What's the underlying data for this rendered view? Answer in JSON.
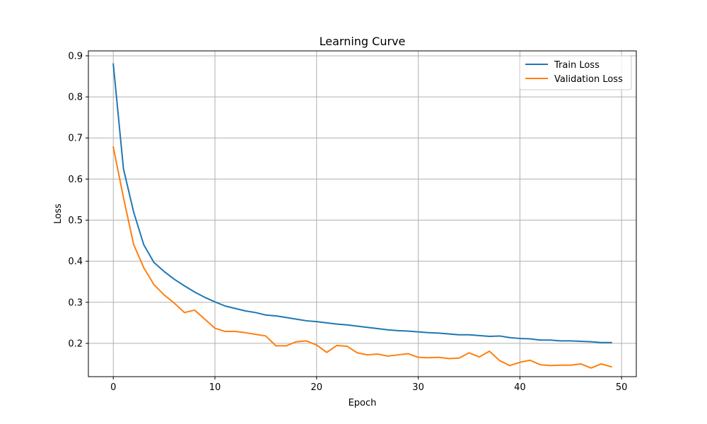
{
  "chart_data": {
    "type": "line",
    "title": "Learning Curve",
    "xlabel": "Epoch",
    "ylabel": "Loss",
    "xlim": [
      -2.45,
      51.45
    ],
    "ylim": [
      0.119,
      0.912
    ],
    "xticks": [
      0,
      10,
      20,
      30,
      40,
      50
    ],
    "yticks": [
      0.2,
      0.3,
      0.4,
      0.5,
      0.6,
      0.7,
      0.8,
      0.9
    ],
    "grid": true,
    "legend_position": "top-right",
    "x": [
      0,
      1,
      2,
      3,
      4,
      5,
      6,
      7,
      8,
      9,
      10,
      11,
      12,
      13,
      14,
      15,
      16,
      17,
      18,
      19,
      20,
      21,
      22,
      23,
      24,
      25,
      26,
      27,
      28,
      29,
      30,
      31,
      32,
      33,
      34,
      35,
      36,
      37,
      38,
      39,
      40,
      41,
      42,
      43,
      44,
      45,
      46,
      47,
      48,
      49
    ],
    "series": [
      {
        "name": "Train Loss",
        "color": "#1f77b4",
        "values": [
          0.88,
          0.625,
          0.52,
          0.44,
          0.397,
          0.375,
          0.356,
          0.34,
          0.325,
          0.312,
          0.301,
          0.291,
          0.285,
          0.279,
          0.275,
          0.269,
          0.267,
          0.263,
          0.259,
          0.255,
          0.253,
          0.25,
          0.247,
          0.245,
          0.242,
          0.239,
          0.236,
          0.233,
          0.231,
          0.23,
          0.228,
          0.226,
          0.225,
          0.223,
          0.221,
          0.221,
          0.219,
          0.217,
          0.218,
          0.214,
          0.212,
          0.211,
          0.208,
          0.208,
          0.206,
          0.206,
          0.205,
          0.204,
          0.202,
          0.202
        ]
      },
      {
        "name": "Validation Loss",
        "color": "#ff7f0e",
        "values": [
          0.678,
          0.555,
          0.441,
          0.384,
          0.343,
          0.318,
          0.298,
          0.275,
          0.281,
          0.259,
          0.237,
          0.229,
          0.229,
          0.226,
          0.222,
          0.218,
          0.194,
          0.194,
          0.204,
          0.206,
          0.196,
          0.178,
          0.195,
          0.193,
          0.177,
          0.172,
          0.174,
          0.169,
          0.172,
          0.175,
          0.166,
          0.165,
          0.166,
          0.163,
          0.164,
          0.177,
          0.167,
          0.181,
          0.158,
          0.146,
          0.154,
          0.159,
          0.148,
          0.146,
          0.147,
          0.147,
          0.15,
          0.14,
          0.15,
          0.143
        ]
      }
    ]
  }
}
